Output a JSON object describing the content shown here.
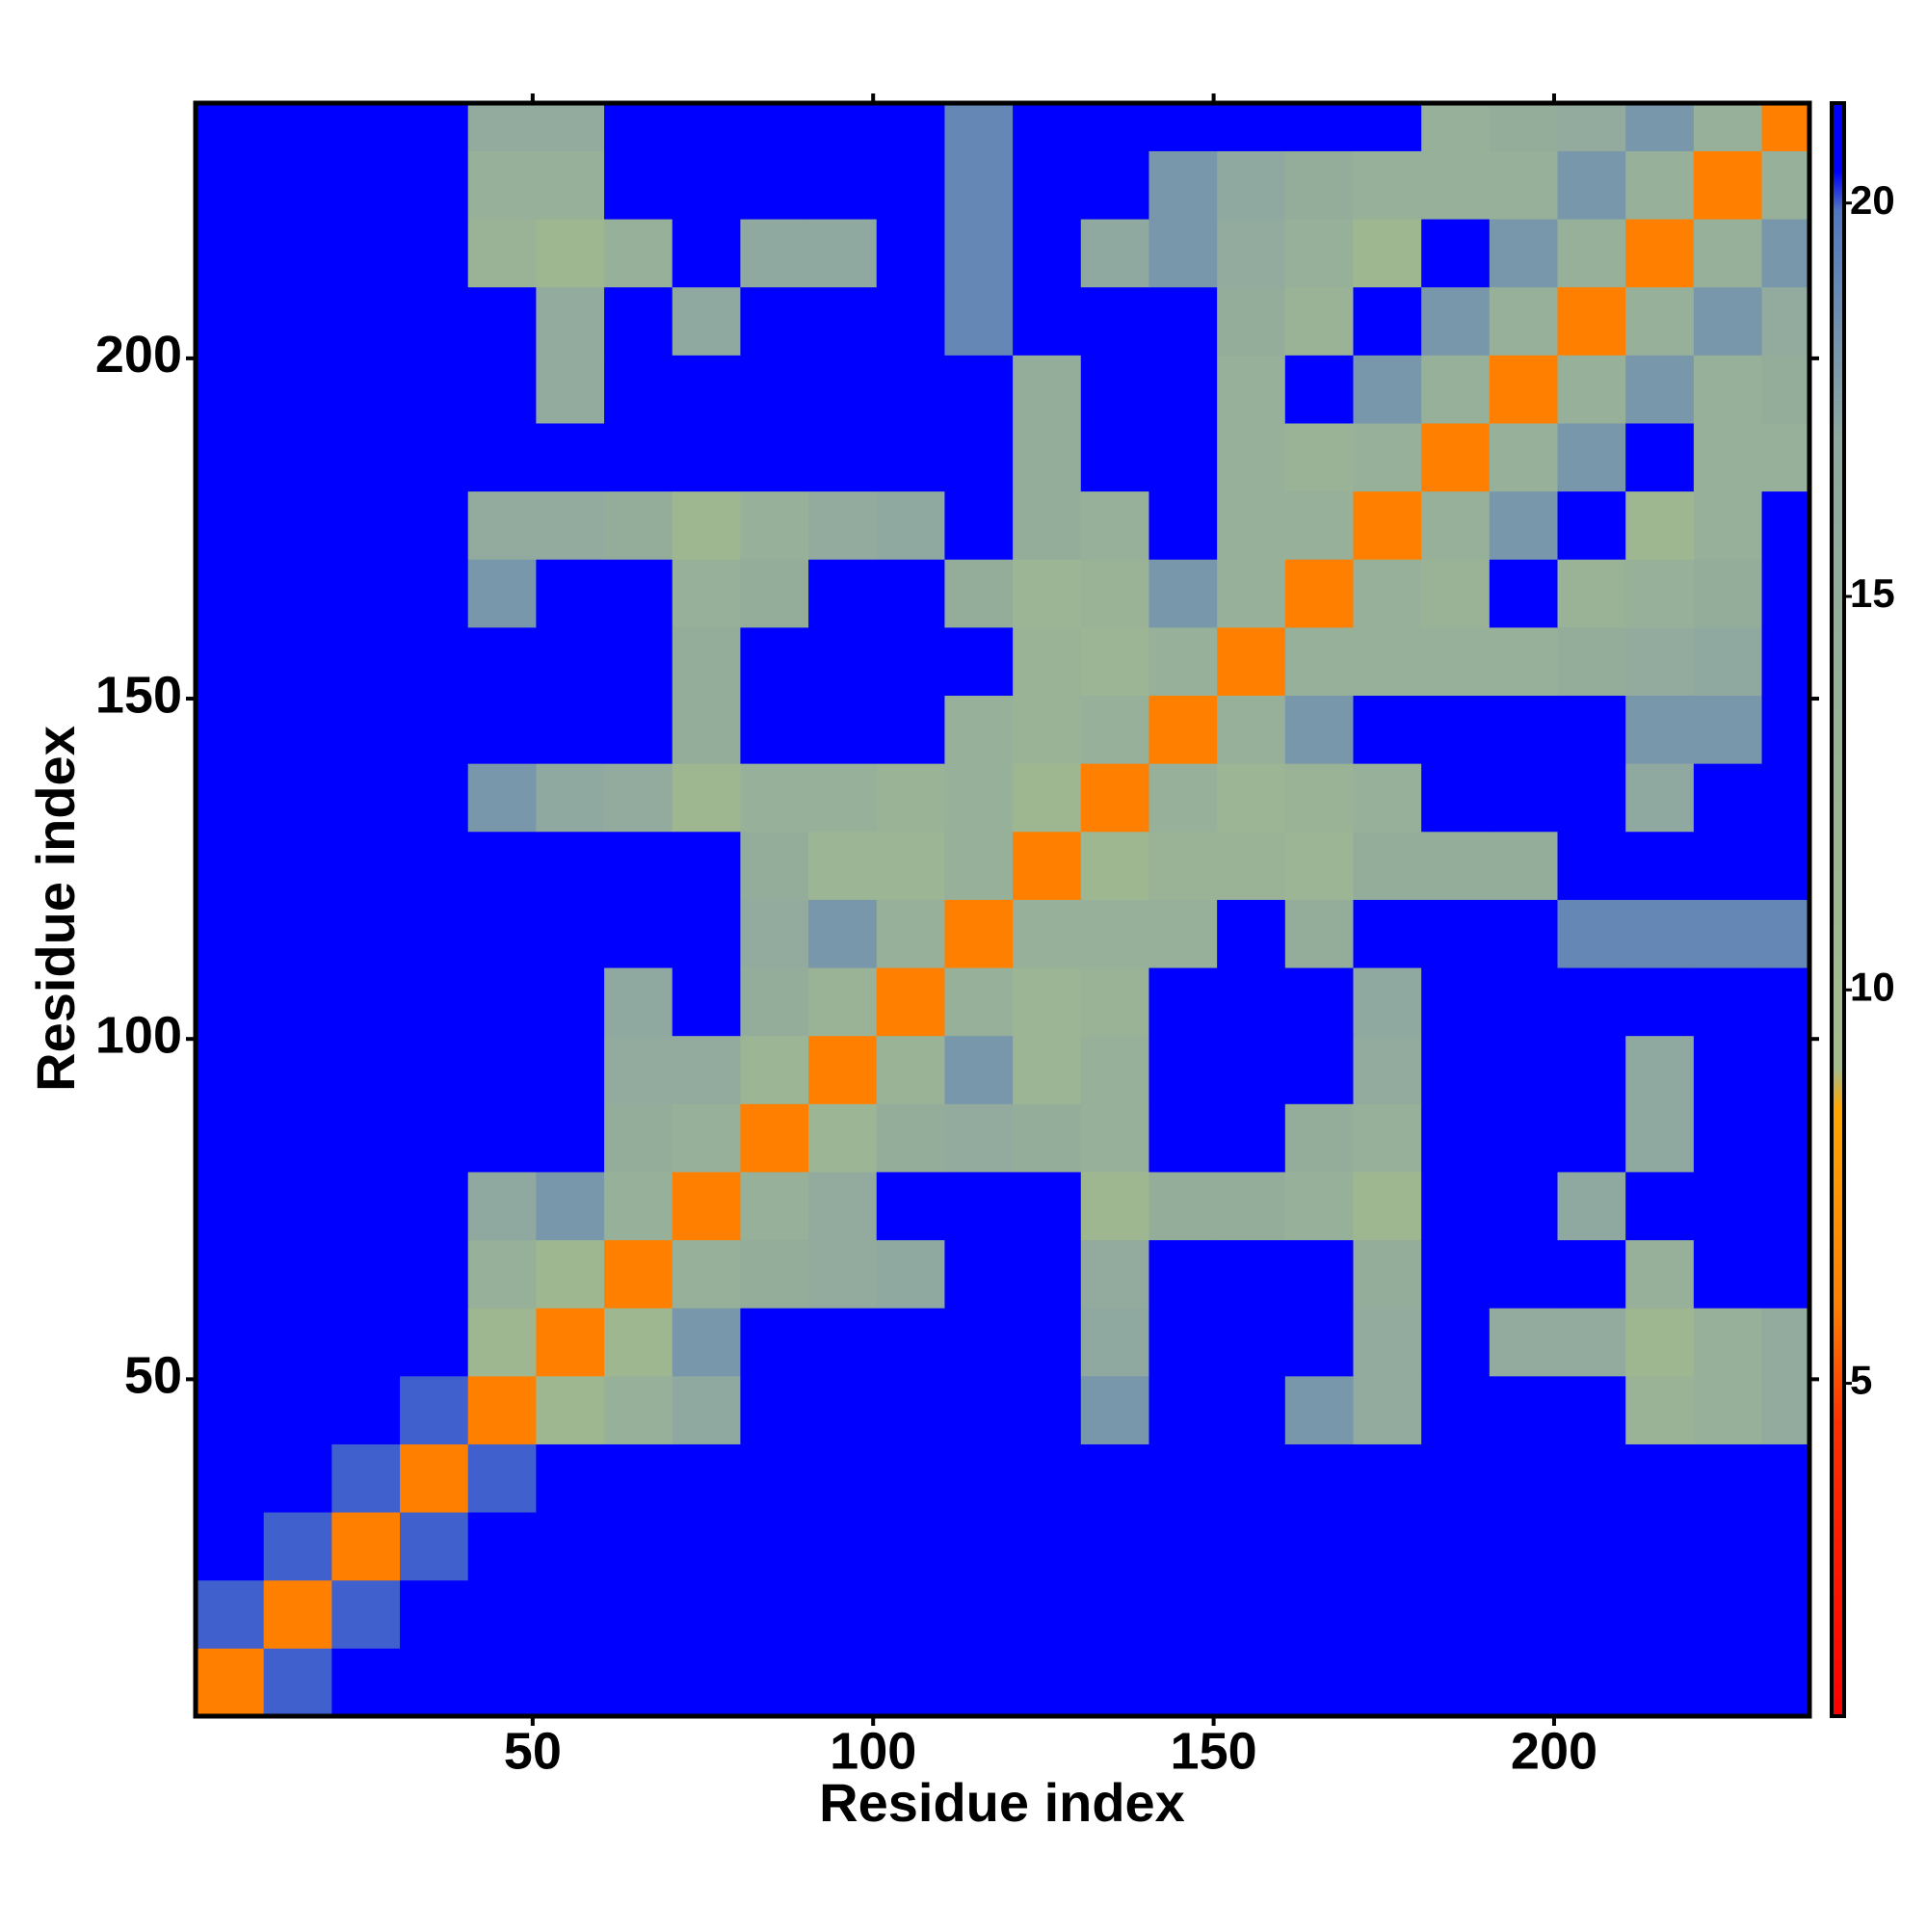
{
  "chart_data": {
    "type": "heatmap",
    "xlabel": "Residue index",
    "ylabel": "Residue index",
    "bins": [
      0.5,
      10.5,
      20.5,
      30.5,
      40.5,
      50.5,
      60.5,
      70.5,
      80.5,
      90.5,
      100.5,
      110.5,
      120.5,
      130.5,
      140.5,
      150.5,
      160.5,
      170.5,
      180.5,
      190.5,
      200.5,
      210.5,
      220.5,
      230.5,
      237.5
    ],
    "values": [
      [
        6,
        20,
        21,
        21,
        21,
        21,
        21,
        21,
        21,
        21,
        21,
        21,
        21,
        21,
        21,
        21,
        21,
        21,
        21,
        21,
        21,
        21,
        21,
        21
      ],
      [
        20,
        6,
        20,
        21,
        21,
        21,
        21,
        21,
        21,
        21,
        21,
        21,
        21,
        21,
        21,
        21,
        21,
        21,
        21,
        21,
        21,
        21,
        21,
        21
      ],
      [
        21,
        20,
        6,
        20,
        21,
        21,
        21,
        21,
        21,
        21,
        21,
        21,
        21,
        21,
        21,
        21,
        21,
        21,
        21,
        21,
        21,
        21,
        21,
        21
      ],
      [
        21,
        21,
        20,
        6,
        20,
        21,
        21,
        21,
        21,
        21,
        21,
        21,
        21,
        21,
        21,
        21,
        21,
        21,
        21,
        21,
        21,
        21,
        21,
        21
      ],
      [
        21,
        21,
        21,
        20,
        6,
        11,
        14,
        17,
        21,
        21,
        21,
        21,
        21,
        18,
        21,
        21,
        18,
        16,
        21,
        21,
        21,
        13,
        14,
        16
      ],
      [
        21,
        21,
        21,
        21,
        11,
        6,
        11,
        18,
        21,
        21,
        21,
        21,
        21,
        17,
        21,
        21,
        21,
        16,
        21,
        16,
        16,
        11,
        14,
        16
      ],
      [
        21,
        21,
        21,
        21,
        14,
        11,
        6,
        14,
        15,
        16,
        17,
        21,
        21,
        16,
        21,
        21,
        21,
        15,
        21,
        21,
        21,
        14,
        21,
        21
      ],
      [
        21,
        21,
        21,
        21,
        17,
        18,
        14,
        6,
        14,
        16,
        21,
        21,
        21,
        11,
        15,
        15,
        14,
        11,
        21,
        21,
        17,
        21,
        21,
        21
      ],
      [
        21,
        21,
        21,
        21,
        21,
        21,
        15,
        14,
        6,
        12,
        15,
        16,
        15,
        14,
        21,
        21,
        15,
        14,
        21,
        21,
        21,
        17,
        21,
        21
      ],
      [
        21,
        21,
        21,
        21,
        21,
        21,
        16,
        16,
        12,
        6,
        13,
        18,
        12,
        14,
        21,
        21,
        21,
        16,
        21,
        21,
        21,
        17,
        21,
        21
      ],
      [
        21,
        21,
        21,
        21,
        21,
        21,
        17,
        21,
        15,
        13,
        6,
        14,
        12,
        13,
        21,
        21,
        21,
        17,
        21,
        21,
        21,
        21,
        21,
        21
      ],
      [
        21,
        21,
        21,
        21,
        21,
        21,
        21,
        21,
        16,
        18,
        14,
        6,
        14,
        14,
        14,
        21,
        15,
        21,
        21,
        21,
        19,
        19,
        19,
        19
      ],
      [
        21,
        21,
        21,
        21,
        21,
        21,
        21,
        21,
        15,
        12,
        12,
        14,
        6,
        11,
        13,
        13,
        12,
        15,
        15,
        15,
        21,
        21,
        21,
        21
      ],
      [
        21,
        21,
        21,
        21,
        18,
        17,
        16,
        11,
        14,
        14,
        13,
        14,
        11,
        6,
        14,
        12,
        13,
        14,
        21,
        21,
        21,
        17,
        21,
        21
      ],
      [
        21,
        21,
        21,
        21,
        21,
        21,
        21,
        15,
        21,
        21,
        21,
        14,
        13,
        14,
        6,
        14,
        18,
        21,
        21,
        21,
        21,
        18,
        18,
        21
      ],
      [
        21,
        21,
        21,
        21,
        21,
        21,
        21,
        15,
        21,
        21,
        21,
        21,
        13,
        12,
        14,
        6,
        14,
        14,
        14,
        14,
        15,
        16,
        17,
        21
      ],
      [
        21,
        21,
        21,
        21,
        18,
        21,
        21,
        14,
        15,
        21,
        21,
        15,
        12,
        13,
        18,
        14,
        6,
        14,
        13,
        21,
        13,
        14,
        15,
        21
      ],
      [
        21,
        21,
        21,
        21,
        16,
        16,
        15,
        11,
        14,
        16,
        17,
        21,
        15,
        14,
        21,
        14,
        14,
        6,
        14,
        18,
        21,
        11,
        14,
        21
      ],
      [
        21,
        21,
        21,
        21,
        21,
        21,
        21,
        21,
        21,
        21,
        21,
        21,
        15,
        21,
        21,
        14,
        13,
        14,
        6,
        14,
        18,
        21,
        14,
        14
      ],
      [
        21,
        21,
        21,
        21,
        21,
        16,
        21,
        21,
        21,
        21,
        21,
        21,
        15,
        21,
        21,
        14,
        21,
        18,
        14,
        6,
        14,
        18,
        14,
        15
      ],
      [
        21,
        21,
        21,
        21,
        21,
        16,
        21,
        17,
        21,
        21,
        21,
        19,
        21,
        21,
        21,
        15,
        13,
        21,
        18,
        14,
        6,
        14,
        18,
        16
      ],
      [
        21,
        21,
        21,
        21,
        13,
        11,
        14,
        21,
        17,
        17,
        21,
        19,
        21,
        17,
        18,
        16,
        14,
        11,
        21,
        18,
        14,
        6,
        14,
        18
      ],
      [
        21,
        21,
        21,
        21,
        14,
        14,
        21,
        21,
        21,
        21,
        21,
        19,
        21,
        21,
        18,
        17,
        15,
        14,
        14,
        14,
        18,
        14,
        6,
        14
      ],
      [
        21,
        21,
        21,
        21,
        16,
        16,
        21,
        21,
        21,
        21,
        21,
        19,
        21,
        21,
        21,
        21,
        21,
        21,
        14,
        15,
        16,
        18,
        14,
        6
      ]
    ],
    "xlim": [
      0.5,
      237.5
    ],
    "ylim": [
      0.5,
      237.5
    ],
    "xticks": [
      50,
      100,
      150,
      200
    ],
    "yticks": [
      50,
      100,
      150,
      200
    ],
    "zlim": [
      0.77,
      21.27
    ],
    "zticks": [
      5,
      10,
      15,
      20
    ],
    "colorscale": [
      {
        "value": 0.77,
        "color": "#ff0000"
      },
      {
        "value": 4.5,
        "color": "#ff3000"
      },
      {
        "value": 6,
        "color": "#ff8000"
      },
      {
        "value": 8.5,
        "color": "#ffa500"
      },
      {
        "value": 9,
        "color": "#a4bc8c"
      },
      {
        "value": 17,
        "color": "#8fa8a0"
      },
      {
        "value": 19.9,
        "color": "#5078c0"
      },
      {
        "value": 20.4,
        "color": "#0000ff"
      },
      {
        "value": 21.27,
        "color": "#0000ff"
      }
    ]
  }
}
